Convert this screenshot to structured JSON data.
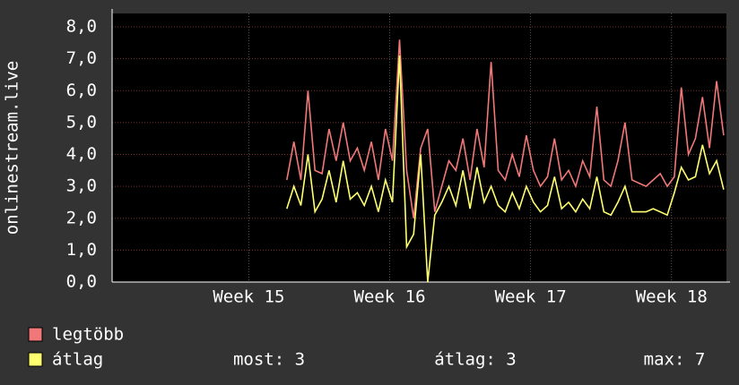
{
  "chart_data": {
    "type": "line",
    "ylabel": "onlinestream.live",
    "x": [
      15.27,
      15.32,
      15.37,
      15.42,
      15.47,
      15.52,
      15.57,
      15.62,
      15.67,
      15.72,
      15.77,
      15.82,
      15.87,
      15.92,
      15.97,
      16.02,
      16.07,
      16.12,
      16.17,
      16.22,
      16.27,
      16.32,
      16.37,
      16.42,
      16.47,
      16.52,
      16.57,
      16.62,
      16.67,
      16.72,
      16.77,
      16.82,
      16.87,
      16.92,
      16.97,
      17.02,
      17.07,
      17.12,
      17.17,
      17.22,
      17.27,
      17.32,
      17.37,
      17.42,
      17.47,
      17.52,
      17.57,
      17.62,
      17.67,
      17.72,
      17.77,
      17.82,
      17.87,
      17.92,
      17.97,
      18.02,
      18.07,
      18.12,
      18.17,
      18.22,
      18.27,
      18.32,
      18.37
    ],
    "series": [
      {
        "name": "legtöbb",
        "color": "#f07878",
        "values": [
          3.2,
          4.4,
          3.2,
          6.0,
          3.5,
          3.4,
          4.8,
          3.8,
          5.0,
          3.8,
          4.2,
          3.5,
          4.4,
          3.2,
          4.8,
          3.8,
          7.6,
          3.5,
          2.0,
          4.2,
          4.8,
          2.2,
          3.0,
          3.8,
          3.5,
          4.5,
          3.2,
          4.8,
          3.6,
          6.9,
          3.5,
          3.2,
          4.0,
          3.3,
          4.6,
          3.5,
          3.0,
          3.3,
          4.5,
          3.2,
          3.5,
          3.0,
          3.8,
          3.3,
          5.5,
          3.2,
          3.0,
          3.8,
          5.0,
          3.2,
          3.1,
          3.0,
          3.2,
          3.4,
          3.0,
          3.3,
          6.1,
          4.0,
          4.5,
          5.8,
          4.2,
          6.3,
          4.6
        ]
      },
      {
        "name": "átlag",
        "color": "#ffff70",
        "values": [
          2.3,
          3.0,
          2.4,
          4.0,
          2.2,
          2.6,
          3.5,
          2.5,
          3.8,
          2.6,
          2.8,
          2.4,
          3.0,
          2.2,
          3.2,
          2.5,
          7.1,
          1.1,
          1.5,
          4.0,
          0.0,
          2.1,
          2.5,
          3.0,
          2.4,
          3.5,
          2.3,
          3.6,
          2.5,
          3.0,
          2.4,
          2.2,
          2.8,
          2.3,
          3.0,
          2.5,
          2.2,
          2.4,
          3.3,
          2.3,
          2.5,
          2.2,
          2.6,
          2.3,
          3.3,
          2.2,
          2.1,
          2.5,
          3.0,
          2.2,
          2.2,
          2.2,
          2.3,
          2.2,
          2.1,
          2.8,
          3.6,
          3.2,
          3.3,
          4.3,
          3.4,
          3.8,
          2.9
        ]
      }
    ],
    "xlim": [
      14.03,
      18.39
    ],
    "xticks": [
      {
        "value": 15,
        "label": "Week 15"
      },
      {
        "value": 16,
        "label": "Week 16"
      },
      {
        "value": 17,
        "label": "Week 17"
      },
      {
        "value": 18,
        "label": "Week 18"
      }
    ],
    "ylim": [
      0,
      8
    ],
    "yticks": [
      {
        "value": 0,
        "label": "0,0"
      },
      {
        "value": 1,
        "label": "1,0"
      },
      {
        "value": 2,
        "label": "2,0"
      },
      {
        "value": 3,
        "label": "3,0"
      },
      {
        "value": 4,
        "label": "4,0"
      },
      {
        "value": 5,
        "label": "5,0"
      },
      {
        "value": 6,
        "label": "6,0"
      },
      {
        "value": 7,
        "label": "7,0"
      },
      {
        "value": 8,
        "label": "8,0"
      }
    ],
    "grid": true,
    "stats": [
      "most: 3",
      "átlag: 3",
      "max: 7"
    ]
  }
}
